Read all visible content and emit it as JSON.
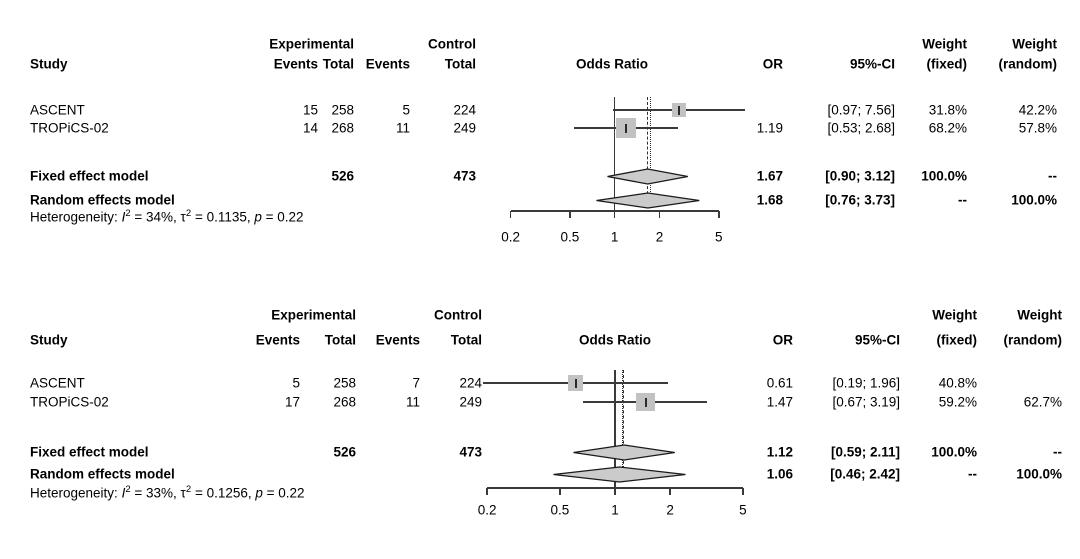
{
  "colors": {
    "text": "#000000",
    "line": "#3a3a3a",
    "dash_line": "#2e2e2e",
    "square_fill": "#c2c2c2",
    "square_tick": "#2b2b2b",
    "diamond_fill": "#cbcbcb",
    "diamond_stroke": "#1a1a1a",
    "background": "#ffffff"
  },
  "chart_data": {
    "type": "forest",
    "scale": "log",
    "columns": {
      "study": "Study",
      "group_experimental": "Experimental",
      "group_control": "Control",
      "events": "Events",
      "total": "Total",
      "odds_ratio": "Odds Ratio",
      "or": "OR",
      "ci": "95%-CI",
      "weight": "Weight",
      "fixed": "(fixed)",
      "random": "(random)"
    },
    "plots": [
      {
        "name": "forest-plot-top",
        "null_value": 1,
        "studies": [
          {
            "name": "ASCENT",
            "exp_events": "15",
            "exp_total": "258",
            "ctrl_events": "5",
            "ctrl_total": "224",
            "or_text": "",
            "ci_text": "[0.97; 7.56]",
            "weight_fixed": "31.8%",
            "weight_random": "42.2%",
            "or": 2.7,
            "ci_low": 0.97,
            "ci_high": 7.56,
            "weight_fixed_pct": 31.8
          },
          {
            "name": "TROPiCS-02",
            "exp_events": "14",
            "exp_total": "268",
            "ctrl_events": "11",
            "ctrl_total": "249",
            "or_text": "1.19",
            "ci_text": "[0.53; 2.68]",
            "weight_fixed": "68.2%",
            "weight_random": "57.8%",
            "or": 1.19,
            "ci_low": 0.53,
            "ci_high": 2.68,
            "weight_fixed_pct": 68.2
          }
        ],
        "fixed_row": {
          "label": "Fixed effect model",
          "exp_total": "526",
          "ctrl_total": "473",
          "or_text": "1.67",
          "ci_text": "[0.90; 3.12]",
          "weight_fixed": "100.0%",
          "weight_random": "--",
          "est": 1.67,
          "low": 0.9,
          "high": 3.12
        },
        "random_row": {
          "label": "Random effects model",
          "or_text": "1.68",
          "ci_text": "[0.76; 3.73]",
          "weight_fixed": "--",
          "weight_random": "100.0%",
          "est": 1.68,
          "low": 0.76,
          "high": 3.73
        },
        "heterogeneity": {
          "prefix": "Heterogeneity: ",
          "i_sym": "I",
          "i_sup": "2",
          "i_rest": " = 34%, ",
          "tau_sym": "τ",
          "tau_sup": "2",
          "tau_rest": " = 0.1135, ",
          "p_sym": "p",
          "p_rest": " = 0.22"
        },
        "axis": {
          "ticks": [
            0.2,
            0.5,
            1,
            2,
            5
          ],
          "labels": [
            "0.2",
            "0.5",
            "1",
            "2",
            "5"
          ]
        }
      },
      {
        "name": "forest-plot-bottom",
        "null_value": 1,
        "studies": [
          {
            "name": "ASCENT",
            "exp_events": "5",
            "exp_total": "258",
            "ctrl_events": "7",
            "ctrl_total": "224",
            "or_text": "0.61",
            "ci_text": "[0.19; 1.96]",
            "weight_fixed": "40.8%",
            "weight_random": "",
            "or": 0.61,
            "ci_low": 0.19,
            "ci_high": 1.96,
            "weight_fixed_pct": 40.8
          },
          {
            "name": "TROPiCS-02",
            "exp_events": "17",
            "exp_total": "268",
            "ctrl_events": "11",
            "ctrl_total": "249",
            "or_text": "1.47",
            "ci_text": "[0.67; 3.19]",
            "weight_fixed": "59.2%",
            "weight_random": "62.7%",
            "or": 1.47,
            "ci_low": 0.67,
            "ci_high": 3.19,
            "weight_fixed_pct": 59.2
          }
        ],
        "fixed_row": {
          "label": "Fixed effect model",
          "exp_total": "526",
          "ctrl_total": "473",
          "or_text": "1.12",
          "ci_text": "[0.59; 2.11]",
          "weight_fixed": "100.0%",
          "weight_random": "--",
          "est": 1.12,
          "low": 0.59,
          "high": 2.11
        },
        "random_row": {
          "label": "Random effects model",
          "or_text": "1.06",
          "ci_text": "[0.46; 2.42]",
          "weight_fixed": "--",
          "weight_random": "100.0%",
          "est": 1.06,
          "low": 0.46,
          "high": 2.42
        },
        "heterogeneity": {
          "prefix": "Heterogeneity: ",
          "i_sym": "I",
          "i_sup": "2",
          "i_rest": " = 33%, ",
          "tau_sym": "τ",
          "tau_sup": "2",
          "tau_rest": " = 0.1256, ",
          "p_sym": "p",
          "p_rest": " = 0.22"
        },
        "axis": {
          "ticks": [
            0.2,
            0.5,
            1,
            2,
            5
          ],
          "labels": [
            "0.2",
            "0.5",
            "1",
            "2",
            "5"
          ]
        }
      }
    ]
  }
}
